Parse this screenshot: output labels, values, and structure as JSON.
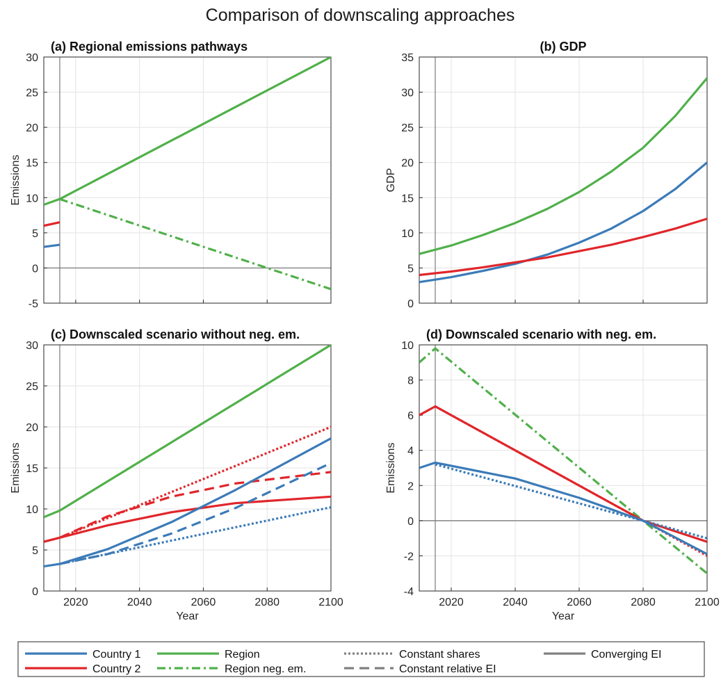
{
  "figure_title": "Comparison of downscaling approaches",
  "colors": {
    "country1": "#3b7bb8",
    "country2": "#e0262b",
    "region": "#50b04a",
    "gray": "#808080"
  },
  "chart_data": [
    {
      "id": "a",
      "type": "line",
      "title": "(a) Regional emissions pathways",
      "title_align": "left",
      "ylabel": "Emissions",
      "xlabel": "",
      "xlim": [
        2010,
        2100
      ],
      "ylim": [
        -5,
        30
      ],
      "yticks": [
        -5,
        0,
        5,
        10,
        15,
        20,
        25,
        30
      ],
      "xticks": [
        2020,
        2040,
        2060,
        2080,
        2100
      ],
      "show_xticklabels": false,
      "grid": true,
      "vline_x": 2015,
      "zero_line": true,
      "series": [
        {
          "key": "country1",
          "style": "solid",
          "x": [
            2010,
            2015
          ],
          "y": [
            3.0,
            3.3
          ]
        },
        {
          "key": "country2",
          "style": "solid",
          "x": [
            2010,
            2015
          ],
          "y": [
            6.0,
            6.5
          ]
        },
        {
          "key": "region",
          "style": "solid",
          "x": [
            2010,
            2015,
            2100
          ],
          "y": [
            9.0,
            9.8,
            30.0
          ]
        },
        {
          "key": "region",
          "style": "dashdot",
          "x": [
            2015,
            2080,
            2100
          ],
          "y": [
            9.8,
            0.0,
            -3.0
          ]
        }
      ]
    },
    {
      "id": "b",
      "type": "line",
      "title": "(b) GDP",
      "title_align": "center",
      "ylabel": "GDP",
      "xlabel": "",
      "xlim": [
        2010,
        2100
      ],
      "ylim": [
        0,
        35
      ],
      "yticks": [
        0,
        5,
        10,
        15,
        20,
        25,
        30,
        35
      ],
      "xticks": [
        2020,
        2040,
        2060,
        2080,
        2100
      ],
      "show_xticklabels": false,
      "grid": true,
      "vline_x": 2015,
      "zero_line": false,
      "series": [
        {
          "key": "region",
          "style": "solid",
          "x": [
            2010,
            2020,
            2030,
            2040,
            2050,
            2060,
            2070,
            2080,
            2090,
            2100
          ],
          "y": [
            7.0,
            8.2,
            9.7,
            11.4,
            13.4,
            15.8,
            18.7,
            22.1,
            26.6,
            32.0
          ]
        },
        {
          "key": "country1",
          "style": "solid",
          "x": [
            2010,
            2020,
            2030,
            2040,
            2050,
            2060,
            2070,
            2080,
            2090,
            2100
          ],
          "y": [
            3.0,
            3.7,
            4.6,
            5.6,
            6.9,
            8.6,
            10.6,
            13.1,
            16.2,
            20.0
          ]
        },
        {
          "key": "country2",
          "style": "solid",
          "x": [
            2010,
            2020,
            2030,
            2040,
            2050,
            2060,
            2070,
            2080,
            2090,
            2100
          ],
          "y": [
            4.0,
            4.5,
            5.1,
            5.8,
            6.5,
            7.4,
            8.3,
            9.4,
            10.6,
            12.0
          ]
        }
      ]
    },
    {
      "id": "c",
      "type": "line",
      "title": "(c) Downscaled scenario without neg. em.",
      "title_align": "left",
      "ylabel": "Emissions",
      "xlabel": "Year",
      "xlim": [
        2010,
        2100
      ],
      "ylim": [
        0,
        30
      ],
      "yticks": [
        0,
        5,
        10,
        15,
        20,
        25,
        30
      ],
      "xticks": [
        2020,
        2040,
        2060,
        2080,
        2100
      ],
      "show_xticklabels": true,
      "grid": true,
      "vline_x": 2015,
      "zero_line": false,
      "series": [
        {
          "key": "region",
          "style": "solid",
          "x": [
            2010,
            2015,
            2100
          ],
          "y": [
            9.0,
            9.8,
            30.0
          ]
        },
        {
          "key": "country2",
          "style": "dotted",
          "x": [
            2010,
            2015,
            2100
          ],
          "y": [
            6.0,
            6.5,
            20.0
          ]
        },
        {
          "key": "country2",
          "style": "dashed",
          "x": [
            2015,
            2030,
            2050,
            2070,
            2100
          ],
          "y": [
            6.5,
            9.1,
            11.5,
            13.1,
            14.5
          ]
        },
        {
          "key": "country2",
          "style": "solid",
          "x": [
            2010,
            2015,
            2030,
            2050,
            2070,
            2100
          ],
          "y": [
            6.0,
            6.5,
            8.0,
            9.6,
            10.7,
            11.5
          ]
        },
        {
          "key": "country1",
          "style": "solid",
          "x": [
            2010,
            2015,
            2030,
            2050,
            2070,
            2100
          ],
          "y": [
            3.0,
            3.3,
            5.1,
            8.4,
            12.3,
            18.6
          ]
        },
        {
          "key": "country1",
          "style": "dashed",
          "x": [
            2015,
            2030,
            2050,
            2070,
            2100
          ],
          "y": [
            3.3,
            4.5,
            7.0,
            10.1,
            15.6
          ]
        },
        {
          "key": "country1",
          "style": "dotted",
          "x": [
            2015,
            2100
          ],
          "y": [
            3.3,
            10.2
          ]
        }
      ]
    },
    {
      "id": "d",
      "type": "line",
      "title": "(d) Downscaled scenario with neg. em.",
      "title_align": "left",
      "ylabel": "Emissions",
      "xlabel": "Year",
      "xlim": [
        2010,
        2100
      ],
      "ylim": [
        -4,
        10
      ],
      "yticks": [
        -4,
        -2,
        0,
        2,
        4,
        6,
        8,
        10
      ],
      "xticks": [
        2020,
        2040,
        2060,
        2080,
        2100
      ],
      "show_xticklabels": true,
      "grid": true,
      "vline_x": 2015,
      "zero_line": true,
      "series": [
        {
          "key": "region",
          "style": "dashdot",
          "x": [
            2010,
            2015,
            2080,
            2100
          ],
          "y": [
            9.0,
            9.8,
            0.0,
            -3.0
          ]
        },
        {
          "key": "country2",
          "style": "solid",
          "x": [
            2010,
            2015,
            2080,
            2100
          ],
          "y": [
            6.0,
            6.5,
            0.0,
            -1.2
          ]
        },
        {
          "key": "country2",
          "style": "dotted",
          "x": [
            2015,
            2080,
            2100
          ],
          "y": [
            6.5,
            0.0,
            -2.0
          ]
        },
        {
          "key": "country1",
          "style": "solid",
          "x": [
            2010,
            2015,
            2040,
            2060,
            2080,
            2100
          ],
          "y": [
            3.0,
            3.3,
            2.4,
            1.3,
            0.0,
            -1.9
          ]
        },
        {
          "key": "country1",
          "style": "dotted",
          "x": [
            2015,
            2080,
            2100
          ],
          "y": [
            3.2,
            0.0,
            -1.0
          ]
        }
      ]
    }
  ],
  "legend": {
    "placement": "bottom",
    "entries": [
      {
        "label": "Country 1",
        "key": "country1",
        "style": "solid"
      },
      {
        "label": "Country 2",
        "key": "country2",
        "style": "solid"
      },
      {
        "label": "Region",
        "key": "region",
        "style": "solid"
      },
      {
        "label": "Region neg. em.",
        "key": "region",
        "style": "dashdot"
      },
      {
        "label": "Constant shares",
        "key": "gray",
        "style": "dotted"
      },
      {
        "label": "Constant relative EI",
        "key": "gray",
        "style": "dashed"
      },
      {
        "label": "Converging EI",
        "key": "gray",
        "style": "solid"
      }
    ]
  }
}
